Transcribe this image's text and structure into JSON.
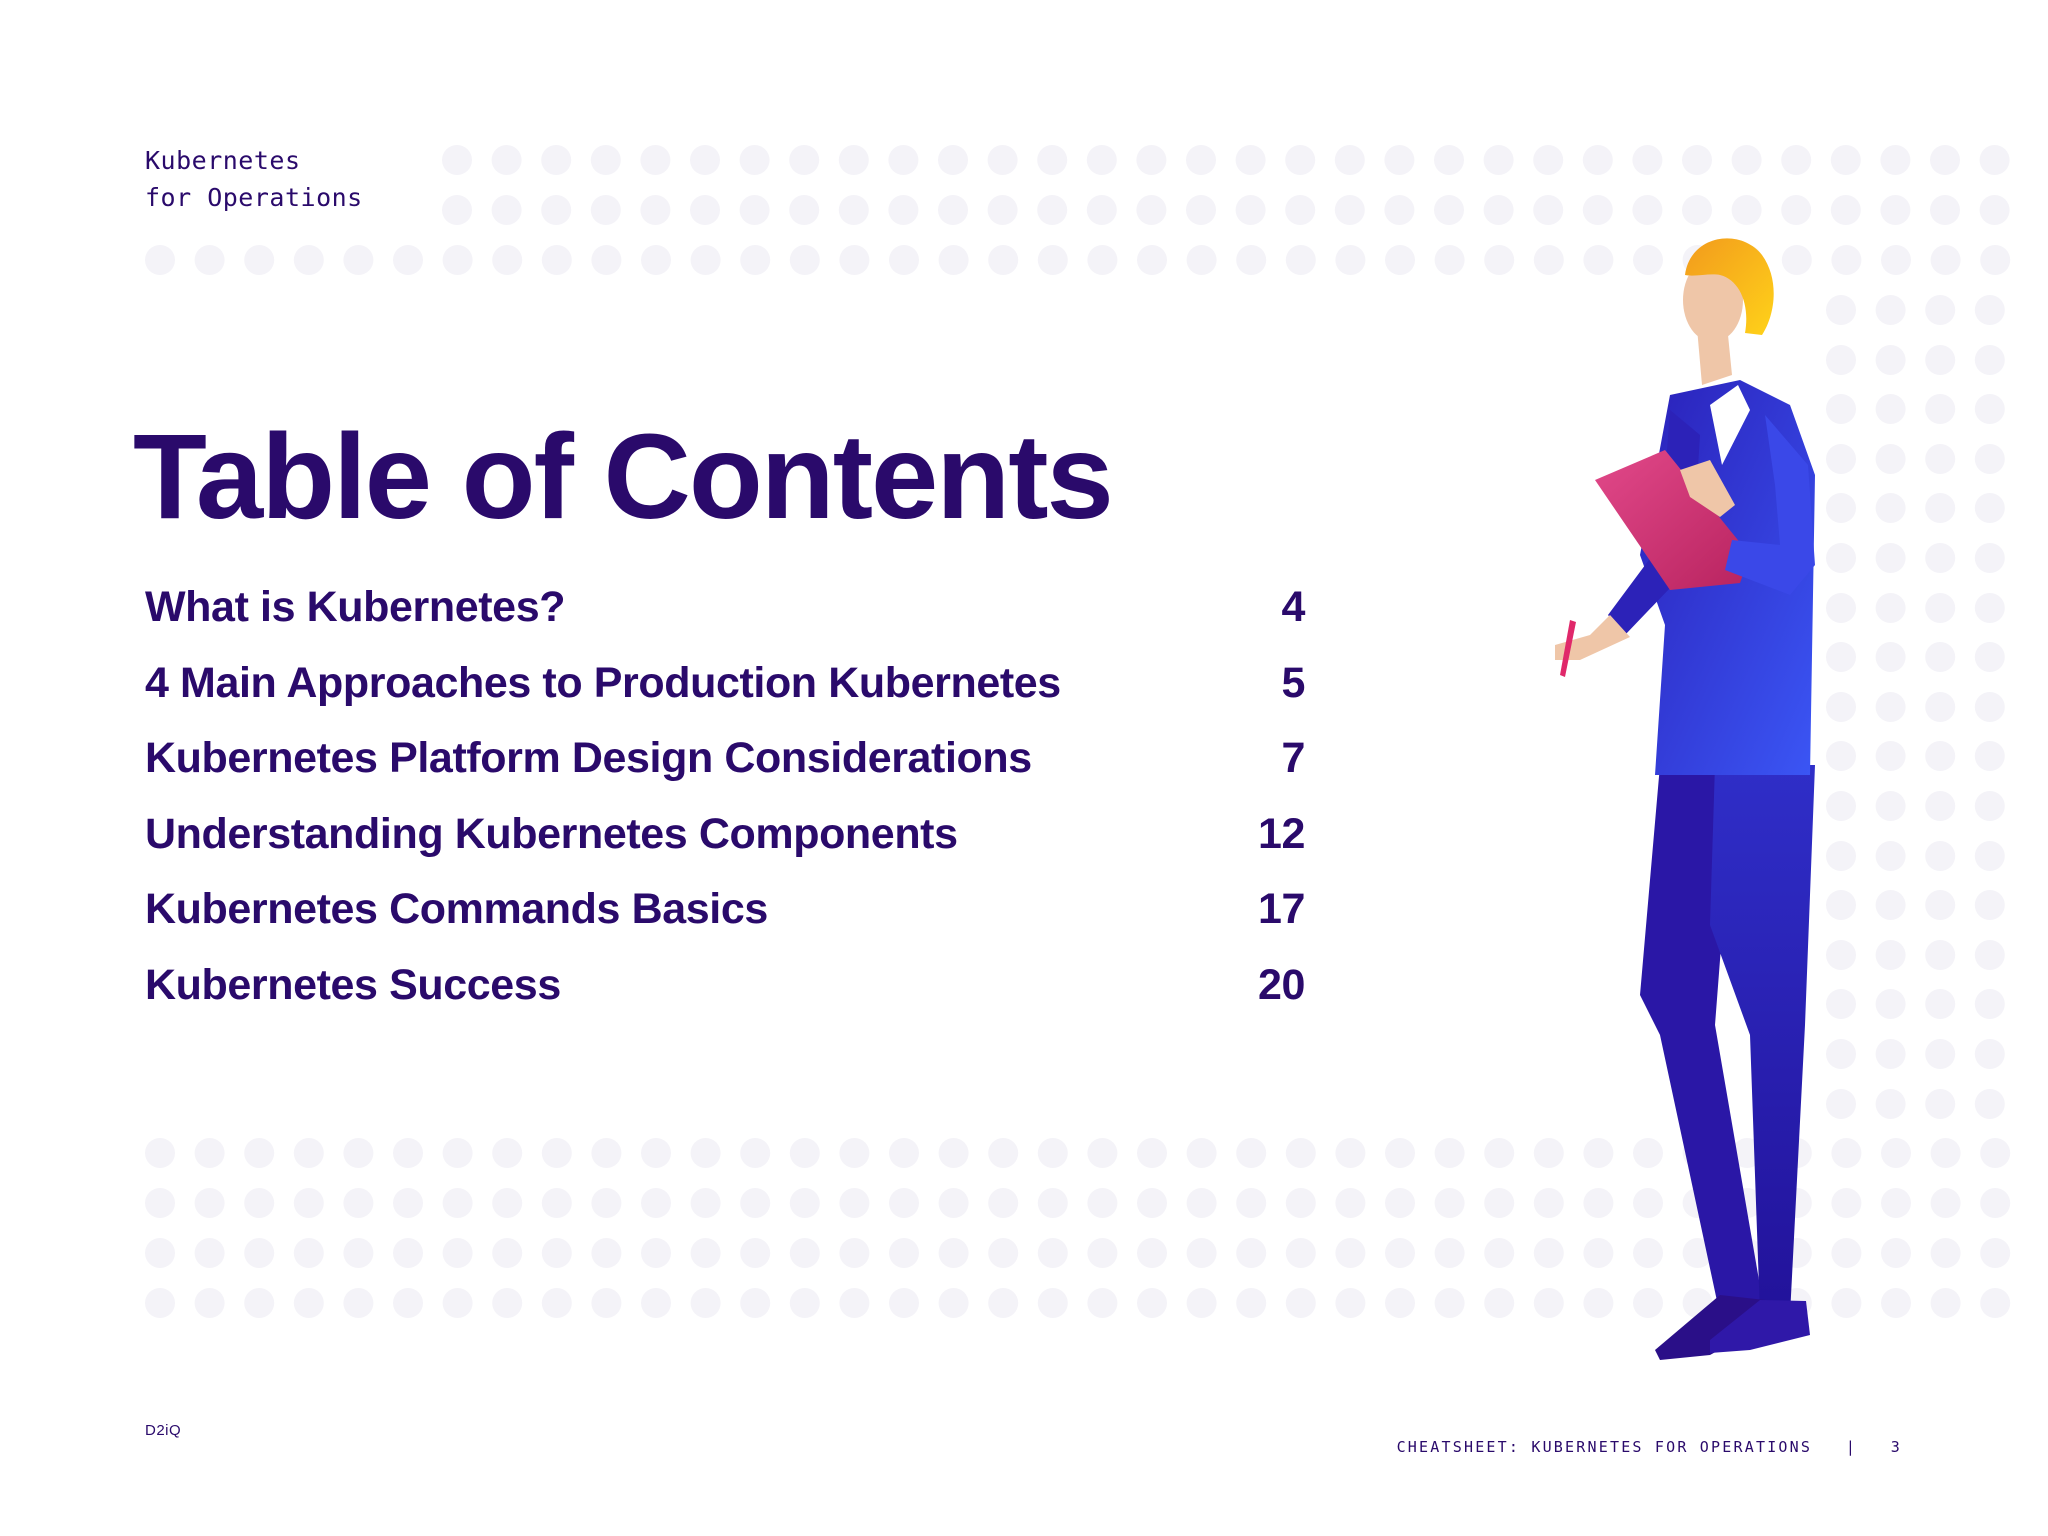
{
  "header": {
    "line1": "Kubernetes",
    "line2": "for Operations"
  },
  "title": "Table of Contents",
  "toc": [
    {
      "title": "What is Kubernetes?",
      "page": "4"
    },
    {
      "title": "4 Main Approaches to Production Kubernetes",
      "page": "5"
    },
    {
      "title": "Kubernetes Platform Design Considerations",
      "page": "7"
    },
    {
      "title": "Understanding Kubernetes Components",
      "page": "12"
    },
    {
      "title": "Kubernetes Commands Basics",
      "page": "17"
    },
    {
      "title": "Kubernetes Success",
      "page": "20"
    }
  ],
  "footer": {
    "brand": "D2iQ",
    "doc_label": "CHEATSHEET: KUBERNETES FOR OPERATIONS",
    "separator": "|",
    "page_number": "3"
  },
  "colors": {
    "text": "#2a0a6b",
    "dot": "#f4f3f8",
    "suit_light": "#3a4cf0",
    "suit_dark": "#2a14a0",
    "hair": "#f5b21a",
    "clipboard": "#d42e72",
    "skin": "#efc6a8"
  },
  "illustration": {
    "icon": "person-with-clipboard-icon"
  }
}
